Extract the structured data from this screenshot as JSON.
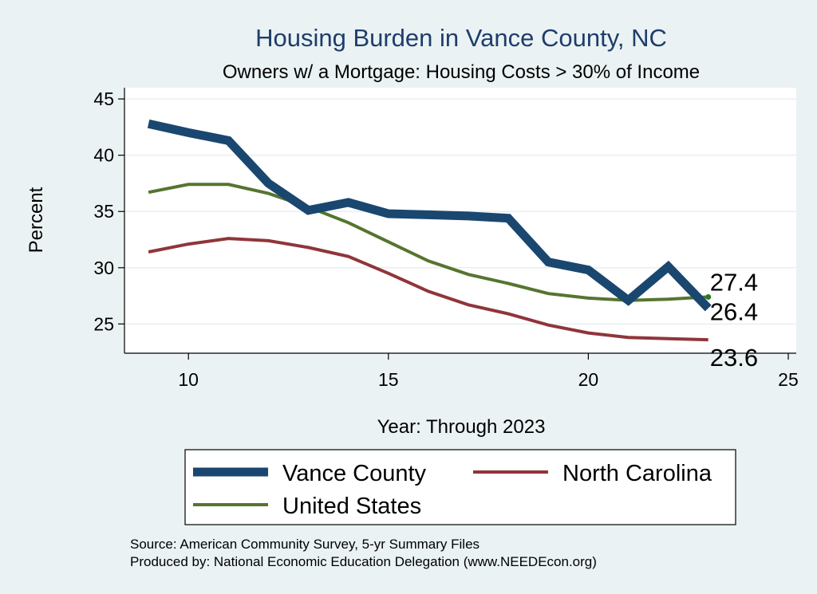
{
  "chart_data": {
    "type": "line",
    "title": "Housing Burden in Vance County, NC",
    "subtitle": "Owners w/ a Mortgage: Housing Costs > 30% of Income",
    "xlabel": "Year: Through 2023",
    "ylabel": "Percent",
    "xlim": [
      8.4,
      25.2
    ],
    "ylim": [
      22.4,
      46.0
    ],
    "xticks": [
      10,
      15,
      20,
      25
    ],
    "yticks": [
      25,
      30,
      35,
      40,
      45
    ],
    "grid": true,
    "legend_position": "bottom",
    "x": [
      9,
      10,
      11,
      12,
      13,
      14,
      15,
      16,
      17,
      18,
      19,
      20,
      21,
      22,
      23
    ],
    "series": [
      {
        "name": "Vance County",
        "color": "#1a476f",
        "values": [
          42.8,
          42.0,
          41.3,
          37.5,
          35.1,
          35.8,
          34.8,
          34.7,
          34.6,
          34.4,
          30.5,
          29.8,
          27.1,
          30.1,
          26.4
        ],
        "end_label": "26.4"
      },
      {
        "name": "North Carolina",
        "color": "#90353b",
        "values": [
          31.4,
          32.1,
          32.6,
          32.4,
          31.8,
          31.0,
          29.5,
          27.9,
          26.7,
          25.9,
          24.9,
          24.2,
          23.8,
          23.7,
          23.6
        ],
        "end_label": "23.6"
      },
      {
        "name": "United States",
        "color": "#55752f",
        "values": [
          36.7,
          37.4,
          37.4,
          36.6,
          35.4,
          34.0,
          32.3,
          30.6,
          29.4,
          28.6,
          27.7,
          27.3,
          27.1,
          27.2,
          27.4
        ],
        "end_label": "27.4"
      }
    ],
    "notes": [
      "Source: American Community Survey, 5-yr Summary Files",
      "Produced by: National Economic Education Delegation (www.NEEDEcon.org)"
    ]
  }
}
